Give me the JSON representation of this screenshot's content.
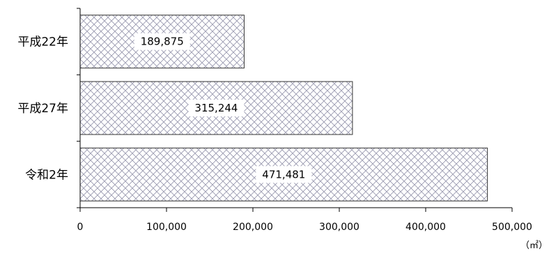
{
  "chart_data": {
    "type": "bar",
    "orientation": "horizontal",
    "categories": [
      "平成22年",
      "平成27年",
      "令和2年"
    ],
    "values": [
      189875,
      315244,
      471481
    ],
    "data_labels": [
      "189,875",
      "315,244",
      "471,481"
    ],
    "xlim": [
      0,
      500000
    ],
    "xticks": [
      0,
      100000,
      200000,
      300000,
      400000,
      500000
    ],
    "xtick_labels": [
      "0",
      "100,000",
      "200,000",
      "300,000",
      "400,000",
      "500,000"
    ],
    "unit": "（㎡）",
    "grid": false,
    "legend": "none",
    "colors": {
      "bar_fill": "#ffffff",
      "bar_pattern": "#9a9ab0",
      "bar_border": "#333333",
      "axis": "#000000"
    }
  }
}
